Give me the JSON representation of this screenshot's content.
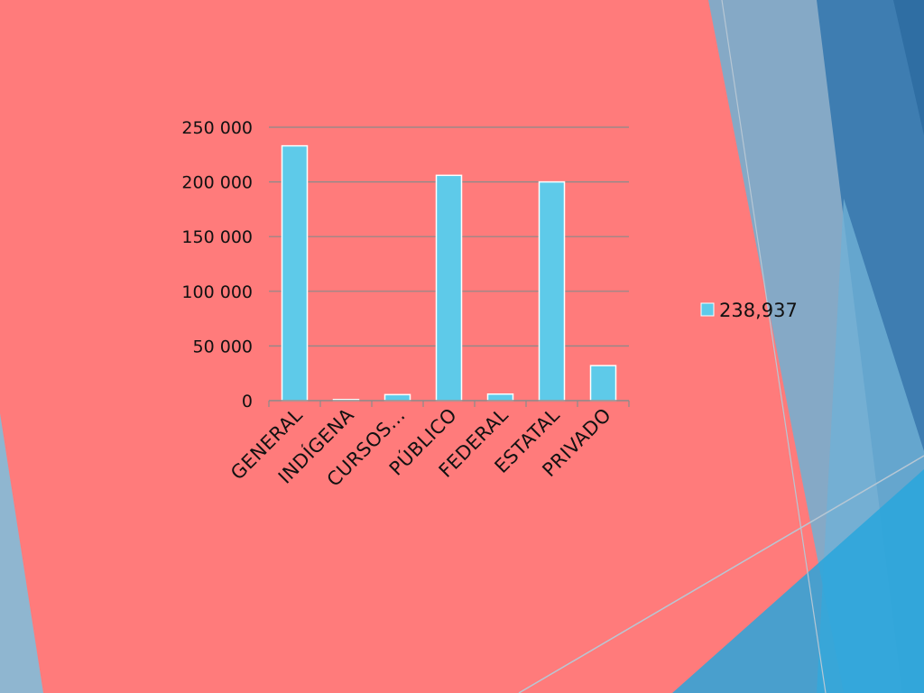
{
  "chart_data": {
    "type": "bar",
    "categories": [
      "GENERAL",
      "INDÍGENA",
      "CURSOS…",
      "PÚBLICO",
      "FEDERAL",
      "ESTATAL",
      "PRIVADO"
    ],
    "series": [
      {
        "name": "238,937",
        "values": [
          233000,
          1000,
          5500,
          206000,
          6000,
          200000,
          32000
        ]
      }
    ],
    "ylim": [
      0,
      250000
    ],
    "yticks": [
      {
        "value": 0,
        "label": "0"
      },
      {
        "value": 50000,
        "label": "50 000"
      },
      {
        "value": 100000,
        "label": "100 000"
      },
      {
        "value": 150000,
        "label": "150 000"
      },
      {
        "value": 200000,
        "label": "200 000"
      },
      {
        "value": 250000,
        "label": "250 000"
      }
    ],
    "grid": true,
    "legend_position": "right",
    "title": "",
    "xlabel": "",
    "ylabel": ""
  },
  "colors": {
    "background": "#ff7b7b",
    "bar_fill": "#5ecae9",
    "bar_stroke": "#ffffff",
    "gridline": "#8a8a8a",
    "text": "#111111"
  }
}
